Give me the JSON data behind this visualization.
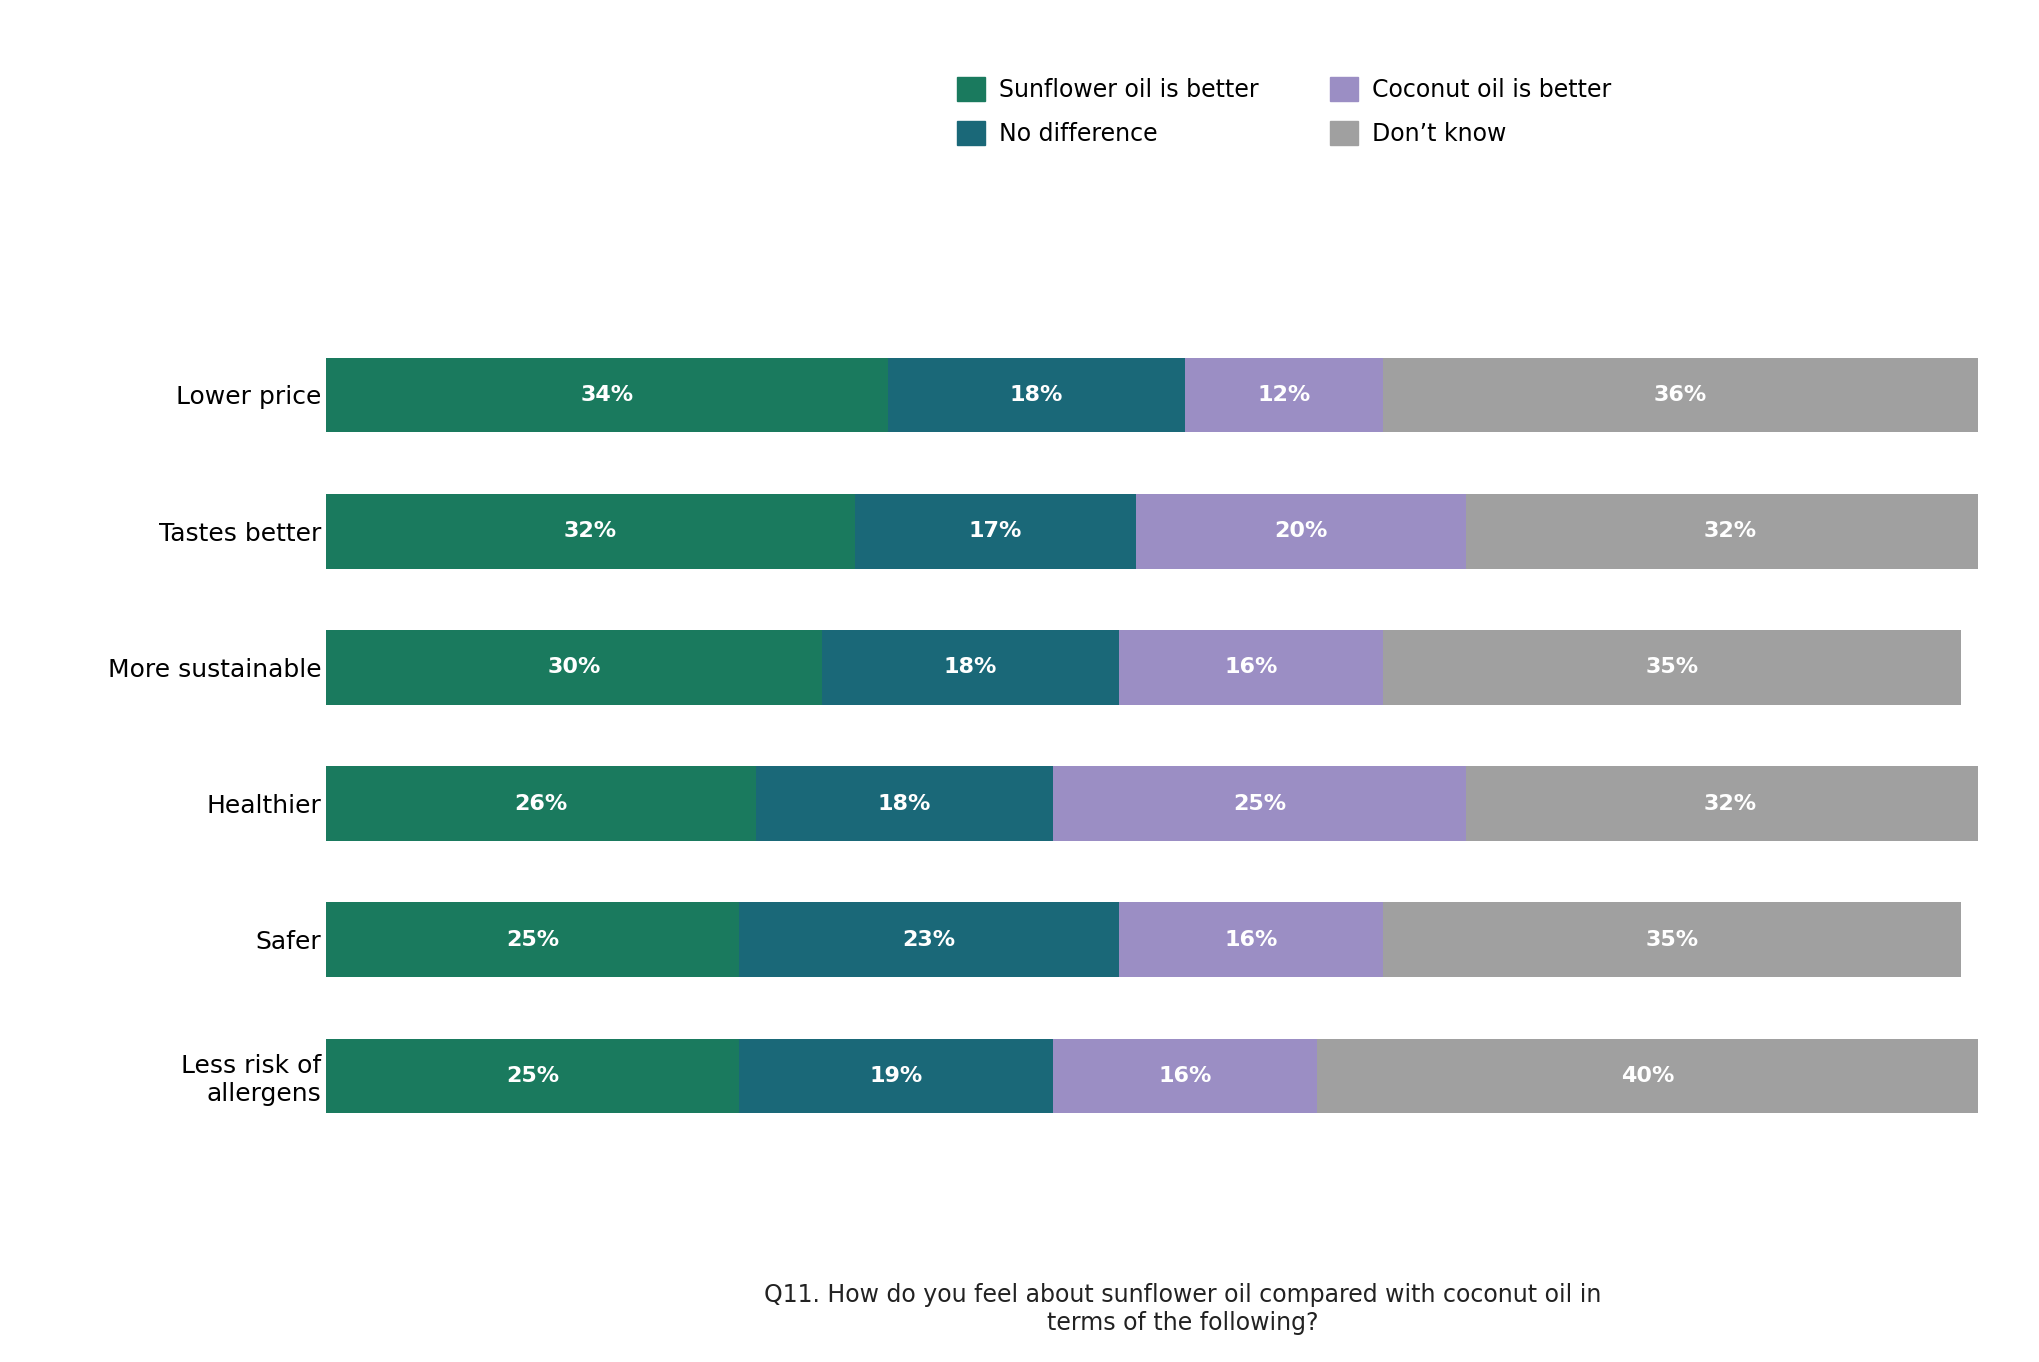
{
  "categories": [
    "Lower price",
    "Tastes better",
    "More sustainable",
    "Healthier",
    "Safer",
    "Less risk of\nallergens"
  ],
  "series": {
    "Sunflower oil is better": [
      34,
      32,
      30,
      26,
      25,
      25
    ],
    "No difference": [
      18,
      17,
      18,
      18,
      23,
      19
    ],
    "Coconut oil is better": [
      12,
      20,
      16,
      25,
      16,
      16
    ],
    "Don’t know": [
      36,
      32,
      35,
      32,
      35,
      40
    ]
  },
  "colors": {
    "Sunflower oil is better": "#1a7a5e",
    "No difference": "#1a6878",
    "Coconut oil is better": "#9b8ec4",
    "Don’t know": "#a0a0a0"
  },
  "legend_order": [
    "Sunflower oil is better",
    "No difference",
    "Coconut oil is better",
    "Don’t know"
  ],
  "footnote": "Q11. How do you feel about sunflower oil compared with coconut oil in\nterms of the following?",
  "bar_height": 0.55,
  "background_color": "#ffffff",
  "text_color": "#ffffff",
  "label_fontsize": 16,
  "legend_fontsize": 17,
  "category_fontsize": 18,
  "footnote_fontsize": 17
}
